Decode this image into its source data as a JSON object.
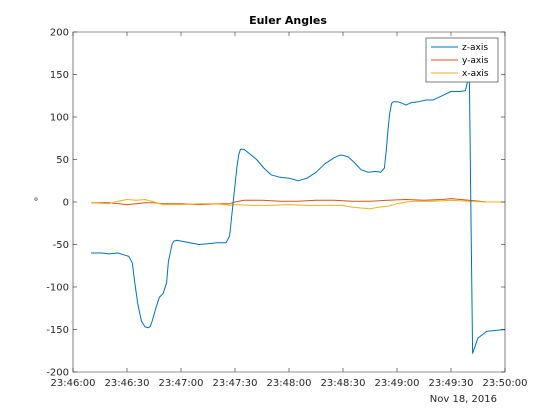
{
  "chart_data": {
    "type": "line",
    "title": "Euler Angles",
    "xlabel": "",
    "ylabel": "°",
    "x_date_label": "Nov 18, 2016",
    "xlim": [
      "23:46:00",
      "23:50:00"
    ],
    "ylim": [
      -200,
      200
    ],
    "x_ticks": [
      "23:46:00",
      "23:46:30",
      "23:47:00",
      "23:47:30",
      "23:48:00",
      "23:48:30",
      "23:49:00",
      "23:49:30",
      "23:50:00"
    ],
    "y_ticks": [
      -200,
      -150,
      -100,
      -50,
      0,
      50,
      100,
      150,
      200
    ],
    "grid": false,
    "legend_position": "top-right",
    "series": [
      {
        "name": "z-axis",
        "color": "#0072bd",
        "x": [
          "23:46:10",
          "23:46:16",
          "23:46:20",
          "23:46:25",
          "23:46:28",
          "23:46:31",
          "23:46:33",
          "23:46:34",
          "23:46:36",
          "23:46:38",
          "23:46:40",
          "23:46:42",
          "23:46:43",
          "23:46:44",
          "23:46:46",
          "23:46:48",
          "23:46:50",
          "23:46:52",
          "23:46:53",
          "23:46:55",
          "23:46:56",
          "23:46:58",
          "23:47:00",
          "23:47:05",
          "23:47:10",
          "23:47:15",
          "23:47:20",
          "23:47:25",
          "23:47:27",
          "23:47:28",
          "23:47:29",
          "23:47:30",
          "23:47:31",
          "23:47:32",
          "23:47:33",
          "23:47:35",
          "23:47:38",
          "23:47:42",
          "23:47:46",
          "23:47:50",
          "23:47:55",
          "23:48:00",
          "23:48:02",
          "23:48:05",
          "23:48:10",
          "23:48:15",
          "23:48:20",
          "23:48:25",
          "23:48:28",
          "23:48:30",
          "23:48:33",
          "23:48:36",
          "23:48:40",
          "23:48:44",
          "23:48:48",
          "23:48:51",
          "23:48:53",
          "23:48:54",
          "23:48:55",
          "23:48:56",
          "23:48:57",
          "23:48:58",
          "23:48:59",
          "23:49:00",
          "23:49:02",
          "23:49:05",
          "23:49:08",
          "23:49:12",
          "23:49:16",
          "23:49:20",
          "23:49:22",
          "23:49:25",
          "23:49:30",
          "23:49:35",
          "23:49:38",
          "23:49:39",
          "23:49:40",
          "23:49:41",
          "23:49:42",
          "23:49:45",
          "23:49:50",
          "23:50:00"
        ],
        "y": [
          -60,
          -60,
          -61,
          -60,
          -62,
          -64,
          -72,
          -90,
          -120,
          -140,
          -147,
          -148,
          -146,
          -140,
          -125,
          -112,
          -108,
          -95,
          -70,
          -50,
          -46,
          -45,
          -46,
          -48,
          -50,
          -49,
          -48,
          -48,
          -40,
          -20,
          0,
          20,
          40,
          55,
          62,
          62,
          57,
          50,
          40,
          32,
          29,
          28,
          27,
          25,
          28,
          35,
          45,
          52,
          55,
          55,
          53,
          47,
          38,
          35,
          36,
          35,
          40,
          60,
          85,
          105,
          116,
          118,
          118,
          118,
          117,
          114,
          117,
          118,
          120,
          120,
          122,
          125,
          130,
          130,
          131,
          140,
          185,
          0,
          -178,
          -160,
          -152,
          -150
        ]
      },
      {
        "name": "y-axis",
        "color": "#d95319",
        "x": [
          "23:46:10",
          "23:46:20",
          "23:46:30",
          "23:46:35",
          "23:46:40",
          "23:46:45",
          "23:46:50",
          "23:47:00",
          "23:47:10",
          "23:47:20",
          "23:47:27",
          "23:47:30",
          "23:47:35",
          "23:47:45",
          "23:47:55",
          "23:48:05",
          "23:48:15",
          "23:48:25",
          "23:48:35",
          "23:48:45",
          "23:48:55",
          "23:49:05",
          "23:49:15",
          "23:49:25",
          "23:49:30",
          "23:49:40",
          "23:49:50",
          "23:50:00"
        ],
        "y": [
          -1,
          -1,
          -3,
          -2,
          -1,
          -1,
          -2,
          -2,
          -3,
          -2,
          -2,
          0,
          2,
          2,
          1,
          1,
          2,
          2,
          1,
          1,
          2,
          3,
          2,
          3,
          4,
          2,
          0,
          0
        ]
      },
      {
        "name": "x-axis",
        "color": "#edb120",
        "x": [
          "23:46:10",
          "23:46:20",
          "23:46:25",
          "23:46:30",
          "23:46:35",
          "23:46:40",
          "23:46:45",
          "23:46:50",
          "23:47:00",
          "23:47:10",
          "23:47:20",
          "23:47:27",
          "23:47:30",
          "23:47:40",
          "23:47:50",
          "23:48:00",
          "23:48:10",
          "23:48:20",
          "23:48:30",
          "23:48:35",
          "23:48:40",
          "23:48:45",
          "23:48:50",
          "23:48:55",
          "23:49:00",
          "23:49:05",
          "23:49:10",
          "23:49:20",
          "23:49:30",
          "23:49:40",
          "23:49:50",
          "23:50:00"
        ],
        "y": [
          -1,
          -2,
          1,
          3,
          2,
          3,
          0,
          -3,
          -3,
          -2,
          -2,
          -4,
          -3,
          -4,
          -4,
          -3,
          -4,
          -4,
          -4,
          -6,
          -7,
          -8,
          -6,
          -5,
          -2,
          0,
          1,
          1,
          2,
          1,
          0,
          0
        ]
      }
    ]
  }
}
